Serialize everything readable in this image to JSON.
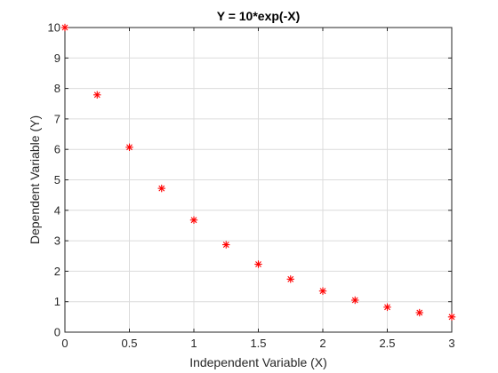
{
  "chart_data": {
    "type": "scatter",
    "title": "Y = 10*exp(-X)",
    "xlabel": "Independent Variable (X)",
    "ylabel": "Dependent Variable (Y)",
    "xlim": [
      0,
      3
    ],
    "ylim": [
      0,
      10
    ],
    "xticks": [
      0,
      0.5,
      1,
      1.5,
      2,
      2.5,
      3
    ],
    "xtick_labels": [
      "0",
      "0.5",
      "1",
      "1.5",
      "2",
      "2.5",
      "3"
    ],
    "yticks": [
      0,
      1,
      2,
      3,
      4,
      5,
      6,
      7,
      8,
      9,
      10
    ],
    "ytick_labels": [
      "0",
      "1",
      "2",
      "3",
      "4",
      "5",
      "6",
      "7",
      "8",
      "9",
      "10"
    ],
    "grid": true,
    "marker": "asterisk",
    "marker_color": "#ff0000",
    "series": [
      {
        "x": [
          0,
          0.25,
          0.5,
          0.75,
          1,
          1.25,
          1.5,
          1.75,
          2,
          2.25,
          2.5,
          2.75,
          3
        ],
        "y": [
          10,
          7.79,
          6.07,
          4.72,
          3.68,
          2.87,
          2.23,
          1.74,
          1.35,
          1.05,
          0.82,
          0.64,
          0.5
        ]
      }
    ]
  }
}
